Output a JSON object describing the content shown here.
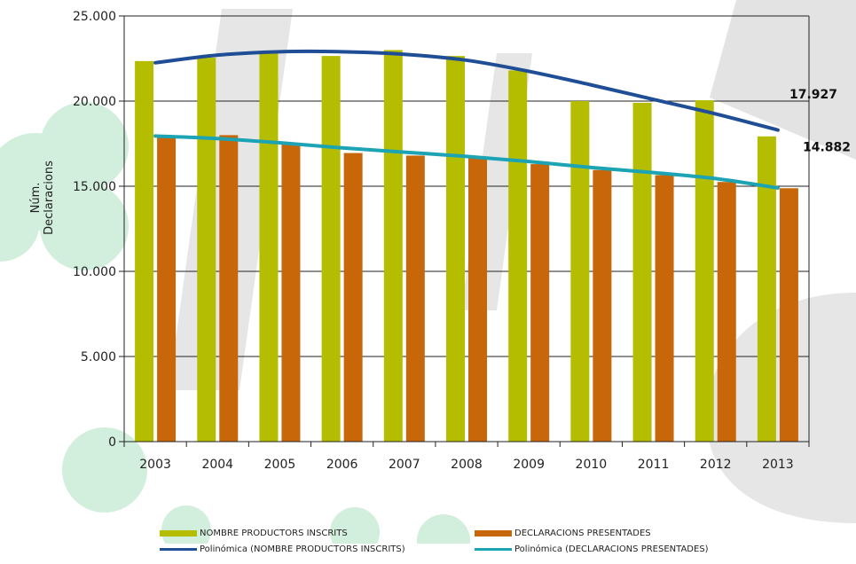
{
  "chart_data": {
    "type": "bar",
    "categories": [
      "2003",
      "2004",
      "2005",
      "2006",
      "2007",
      "2008",
      "2009",
      "2010",
      "2011",
      "2012",
      "2013"
    ],
    "ylabel": "Núm.\nDeclaracions",
    "ylim": [
      0,
      25000
    ],
    "yticks": [
      0,
      5000,
      10000,
      15000,
      20000,
      25000
    ],
    "ytick_labels": [
      "0",
      "5.000",
      "10.000",
      "15.000",
      "20.000",
      "25.000"
    ],
    "grid": true,
    "legend_position": "bottom",
    "series": [
      {
        "name": "NOMBRE PRODUCTORS INSCRITS",
        "color": "#b5bd00",
        "values": [
          22350,
          22550,
          22800,
          22650,
          23000,
          22650,
          21800,
          20000,
          19900,
          20050,
          17927
        ]
      },
      {
        "name": "DECLARACIONS PRESENTADES",
        "color": "#c8660a",
        "values": [
          17900,
          18000,
          17500,
          16950,
          16800,
          16650,
          16300,
          15950,
          15650,
          15250,
          14882
        ]
      }
    ],
    "trendlines": [
      {
        "name": "Polinómica (NOMBRE PRODUCTORS INSCRITS)",
        "color": "#1f4e96",
        "values": [
          22250,
          22700,
          22900,
          22900,
          22750,
          22400,
          21750,
          20950,
          20100,
          19250,
          18300
        ]
      },
      {
        "name": "Polinómica (DECLARACIONS PRESENTADES)",
        "color": "#1ca3b4",
        "values": [
          17950,
          17800,
          17550,
          17250,
          17000,
          16750,
          16450,
          16100,
          15800,
          15450,
          14900
        ]
      }
    ],
    "annotations": [
      "17.927",
      "14.882"
    ]
  }
}
